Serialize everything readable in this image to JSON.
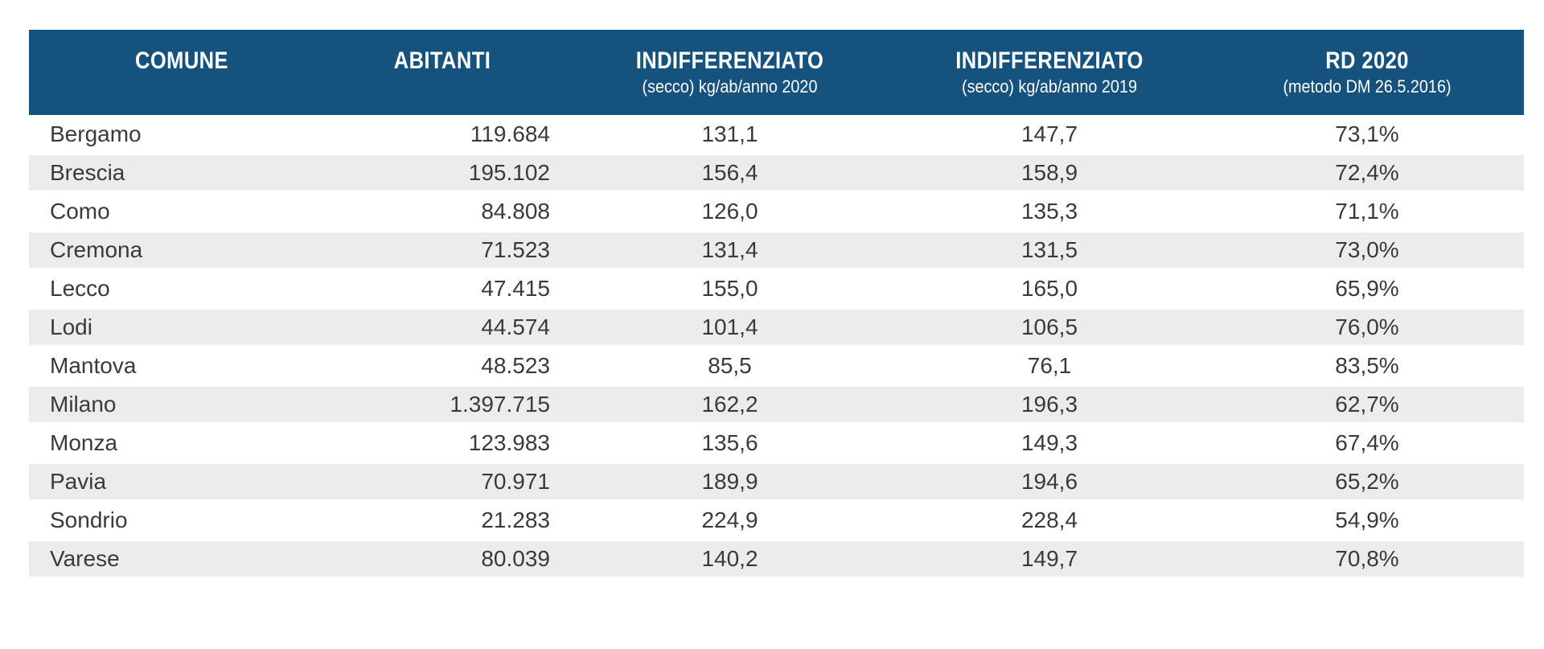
{
  "table": {
    "columns": [
      {
        "key": "comune",
        "label": "COMUNE",
        "sublabel": ""
      },
      {
        "key": "abitanti",
        "label": "ABITANTI",
        "sublabel": ""
      },
      {
        "key": "ind2020",
        "label": "INDIFFERENZIATO",
        "sublabel": "(secco) kg/ab/anno 2020"
      },
      {
        "key": "ind2019",
        "label": "INDIFFERENZIATO",
        "sublabel": "(secco) kg/ab/anno 2019"
      },
      {
        "key": "rd2020",
        "label": "RD 2020",
        "sublabel": "(metodo DM 26.5.2016)"
      }
    ],
    "rows": [
      {
        "comune": "Bergamo",
        "abitanti": "119.684",
        "ind2020": "131,1",
        "ind2019": "147,7",
        "rd2020": "73,1%"
      },
      {
        "comune": "Brescia",
        "abitanti": "195.102",
        "ind2020": "156,4",
        "ind2019": "158,9",
        "rd2020": "72,4%"
      },
      {
        "comune": "Como",
        "abitanti": "84.808",
        "ind2020": "126,0",
        "ind2019": "135,3",
        "rd2020": "71,1%"
      },
      {
        "comune": "Cremona",
        "abitanti": "71.523",
        "ind2020": "131,4",
        "ind2019": "131,5",
        "rd2020": "73,0%"
      },
      {
        "comune": "Lecco",
        "abitanti": "47.415",
        "ind2020": "155,0",
        "ind2019": "165,0",
        "rd2020": "65,9%"
      },
      {
        "comune": "Lodi",
        "abitanti": "44.574",
        "ind2020": "101,4",
        "ind2019": "106,5",
        "rd2020": "76,0%"
      },
      {
        "comune": "Mantova",
        "abitanti": "48.523",
        "ind2020": "85,5",
        "ind2019": "76,1",
        "rd2020": "83,5%"
      },
      {
        "comune": "Milano",
        "abitanti": "1.397.715",
        "ind2020": "162,2",
        "ind2019": "196,3",
        "rd2020": "62,7%"
      },
      {
        "comune": "Monza",
        "abitanti": "123.983",
        "ind2020": "135,6",
        "ind2019": "149,3",
        "rd2020": "67,4%"
      },
      {
        "comune": "Pavia",
        "abitanti": "70.971",
        "ind2020": "189,9",
        "ind2019": "194,6",
        "rd2020": "65,2%"
      },
      {
        "comune": "Sondrio",
        "abitanti": "21.283",
        "ind2020": "224,9",
        "ind2019": "228,4",
        "rd2020": "54,9%"
      },
      {
        "comune": "Varese",
        "abitanti": "80.039",
        "ind2020": "140,2",
        "ind2019": "149,7",
        "rd2020": "70,8%"
      }
    ]
  },
  "colors": {
    "header_bg": "#16527E",
    "header_text": "#FFFFFF",
    "row_alt_bg": "#ECECEC",
    "row_text": "#3A3A3A",
    "page_bg": "#FFFFFF"
  }
}
